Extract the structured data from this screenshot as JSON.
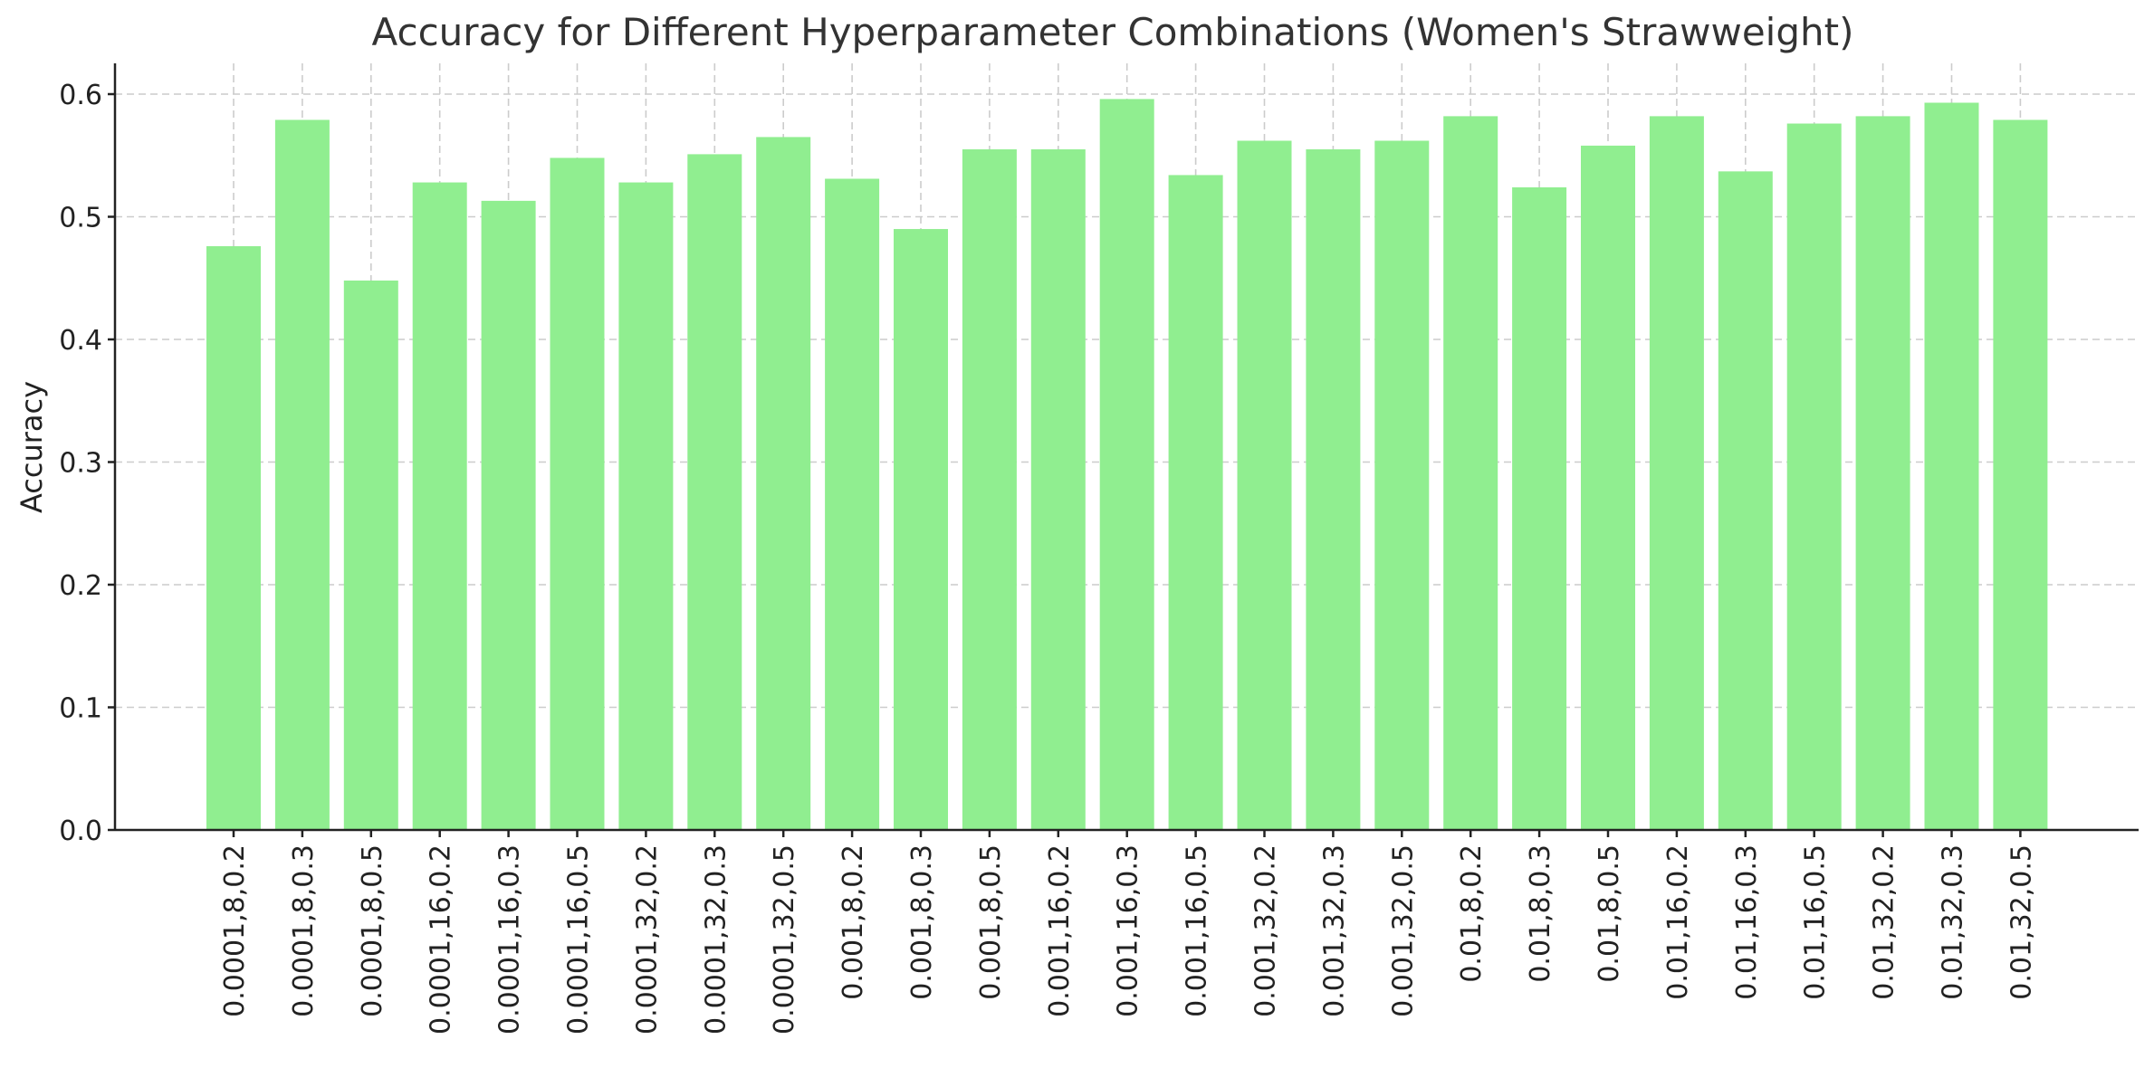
{
  "chart_data": {
    "type": "bar",
    "title": "Accuracy for Different Hyperparameter Combinations (Women's Strawweight)",
    "xlabel": "",
    "ylabel": "Accuracy",
    "ylim": [
      0,
      0.625
    ],
    "yticks": [
      0.0,
      0.1,
      0.2,
      0.3,
      0.4,
      0.5,
      0.6
    ],
    "ytick_labels": [
      "0.0",
      "0.1",
      "0.2",
      "0.3",
      "0.4",
      "0.5",
      "0.6"
    ],
    "grid": true,
    "bar_color": "#90EE90",
    "categories": [
      "0.0001,8,0.2",
      "0.0001,8,0.3",
      "0.0001,8,0.5",
      "0.0001,16,0.2",
      "0.0001,16,0.3",
      "0.0001,16,0.5",
      "0.0001,32,0.2",
      "0.0001,32,0.3",
      "0.0001,32,0.5",
      "0.001,8,0.2",
      "0.001,8,0.3",
      "0.001,8,0.5",
      "0.001,16,0.2",
      "0.001,16,0.3",
      "0.001,16,0.5",
      "0.001,32,0.2",
      "0.001,32,0.3",
      "0.001,32,0.5",
      "0.01,8,0.2",
      "0.01,8,0.3",
      "0.01,8,0.5",
      "0.01,16,0.2",
      "0.01,16,0.3",
      "0.01,16,0.5",
      "0.01,32,0.2",
      "0.01,32,0.3",
      "0.01,32,0.5"
    ],
    "values": [
      0.476,
      0.579,
      0.448,
      0.528,
      0.513,
      0.548,
      0.528,
      0.551,
      0.565,
      0.531,
      0.49,
      0.555,
      0.555,
      0.596,
      0.534,
      0.562,
      0.555,
      0.562,
      0.582,
      0.524,
      0.558,
      0.582,
      0.537,
      0.576,
      0.582,
      0.593,
      0.579
    ]
  }
}
